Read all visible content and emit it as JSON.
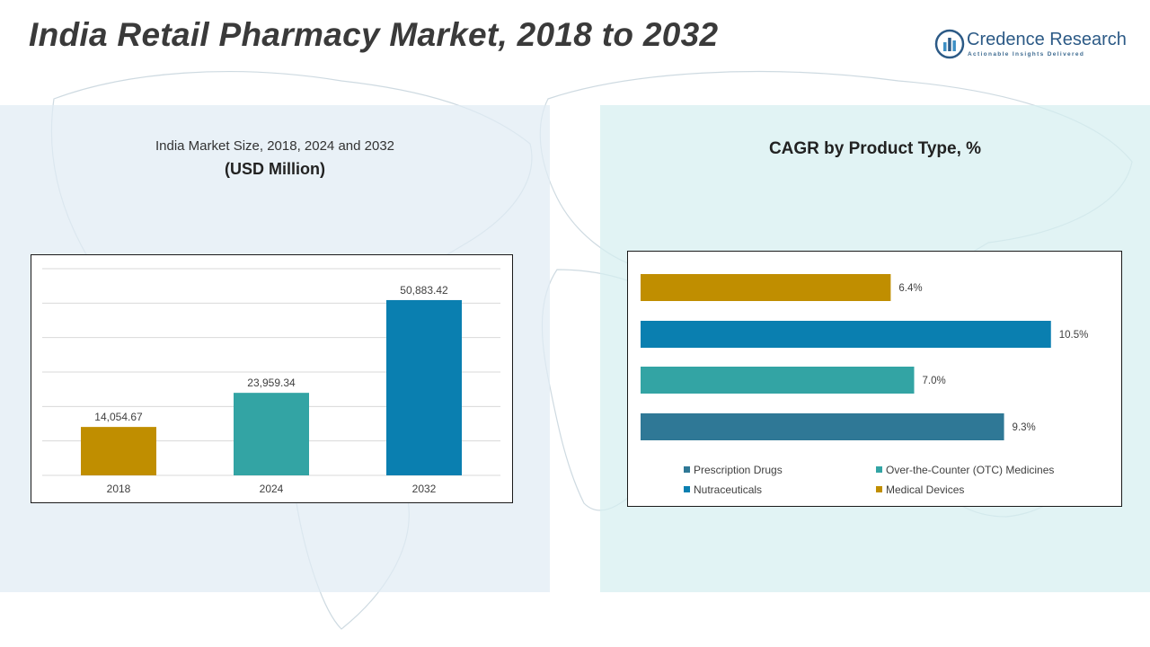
{
  "page": {
    "title": "India Retail Pharmacy Market, 2018 to 2032"
  },
  "brand": {
    "name": "Credence Research",
    "tagline": "Actionable Insights Delivered",
    "color": "#2c5a86"
  },
  "left_panel": {
    "subtitle": "India Market Size, 2018, 2024 and 2032",
    "unit": "(USD Million)"
  },
  "right_panel": {
    "title": "CAGR by Product Type, %"
  },
  "chart_data": [
    {
      "type": "bar",
      "title": "India Market Size, 2018, 2024 and 2032",
      "ylabel": "(USD Million)",
      "categories": [
        "2018",
        "2024",
        "2032"
      ],
      "values": [
        14054.67,
        23959.34,
        50883.42
      ],
      "value_labels": [
        "14,054.67",
        "23,959.34",
        "50,883.42"
      ],
      "colors": [
        "#c08e00",
        "#33a4a4",
        "#0a7fb0"
      ],
      "ylim": [
        0,
        60000
      ],
      "grid": true,
      "legend": "none"
    },
    {
      "type": "bar",
      "orientation": "horizontal",
      "title": "CAGR by Product Type, %",
      "series": [
        {
          "name": "Medical Devices",
          "value": 6.4,
          "label": "6.4%",
          "color": "#c08e00"
        },
        {
          "name": "Nutraceuticals",
          "value": 10.5,
          "label": "10.5%",
          "color": "#0a7fb0"
        },
        {
          "name": "Over-the-Counter (OTC) Medicines",
          "value": 7.0,
          "label": "7.0%",
          "color": "#33a4a4"
        },
        {
          "name": "Prescription Drugs",
          "value": 9.3,
          "label": "9.3%",
          "color": "#2f7896"
        }
      ],
      "legend_order": [
        "Prescription Drugs",
        "Over-the-Counter (OTC) Medicines",
        "Nutraceuticals",
        "Medical Devices"
      ],
      "legend": "bottom",
      "grid": false
    }
  ]
}
